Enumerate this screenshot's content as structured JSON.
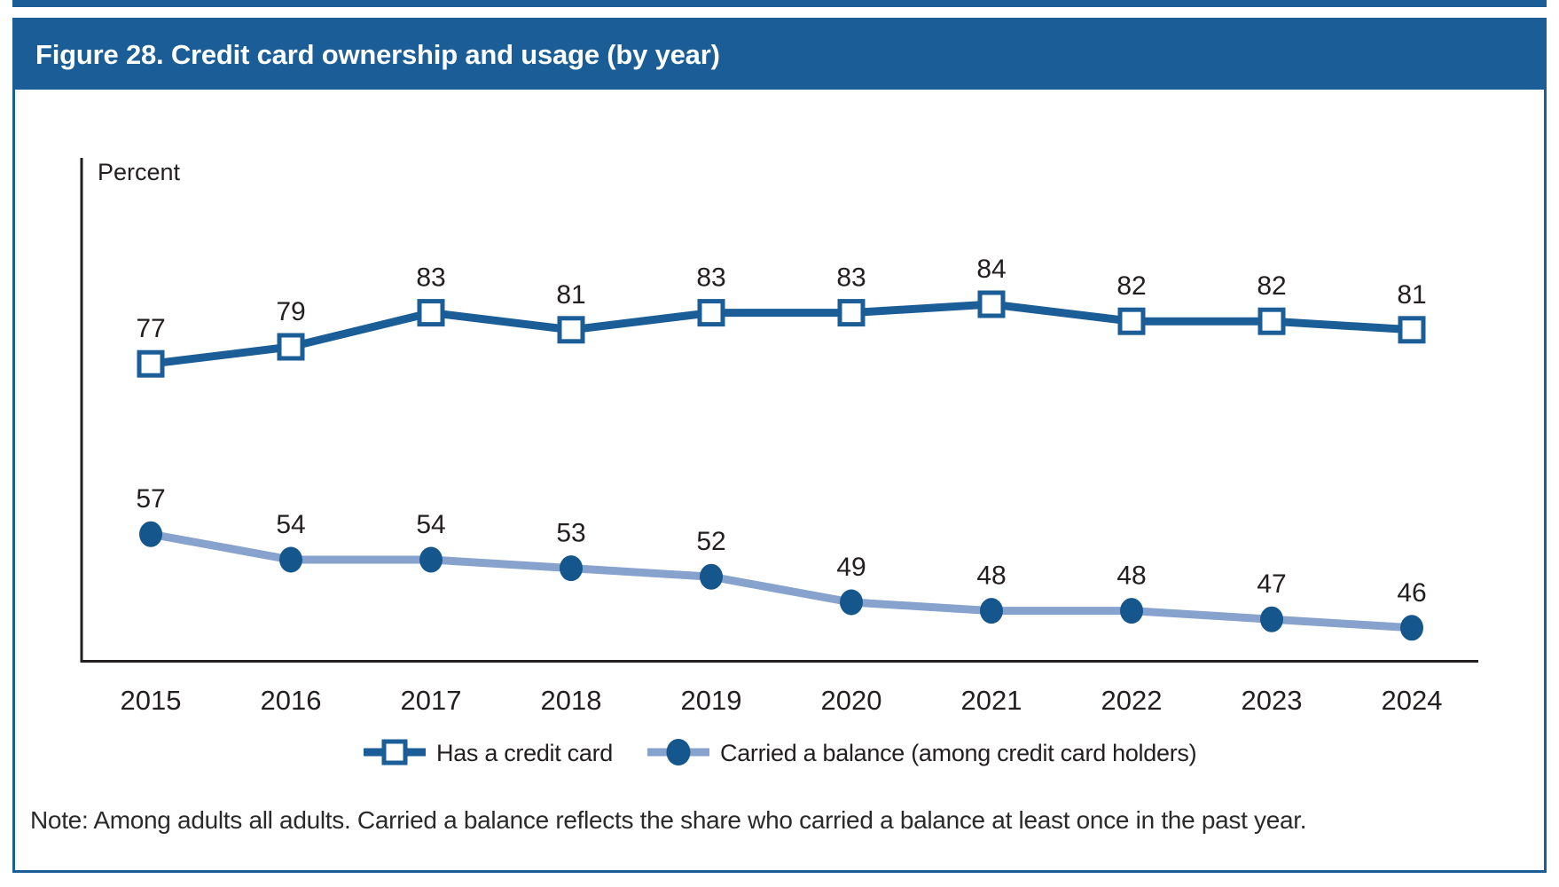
{
  "page": {
    "title": "Figure 28. Credit card ownership and usage (by year)",
    "note": "Note: Among adults all adults. Carried a balance reflects the share who carried a balance at least once in the past year."
  },
  "colors": {
    "accent_blue": "#1b5d96",
    "light_blue": "#86a2cd",
    "marker_blue": "#15568d",
    "axis_black": "#231f20"
  },
  "chart_data": {
    "type": "line",
    "title": "Figure 28. Credit card ownership and usage (by year)",
    "ylabel": "Percent",
    "xlabel": "",
    "categories": [
      "2015",
      "2016",
      "2017",
      "2018",
      "2019",
      "2020",
      "2021",
      "2022",
      "2023",
      "2024"
    ],
    "series": [
      {
        "name": "Has a credit card",
        "values": [
          77,
          79,
          83,
          81,
          83,
          83,
          84,
          82,
          82,
          81
        ],
        "color": "#1b5d96",
        "marker": "open-square"
      },
      {
        "name": "Carried a balance (among credit card holders)",
        "values": [
          57,
          54,
          54,
          53,
          52,
          49,
          48,
          48,
          47,
          46
        ],
        "color": "#86a2cd",
        "marker": "filled-circle",
        "marker_color": "#15568d"
      }
    ],
    "data_labels": true,
    "grid": false,
    "legend_position": "bottom",
    "axis_color": "#231f20",
    "ylim_implied": [
      42,
      102
    ]
  }
}
